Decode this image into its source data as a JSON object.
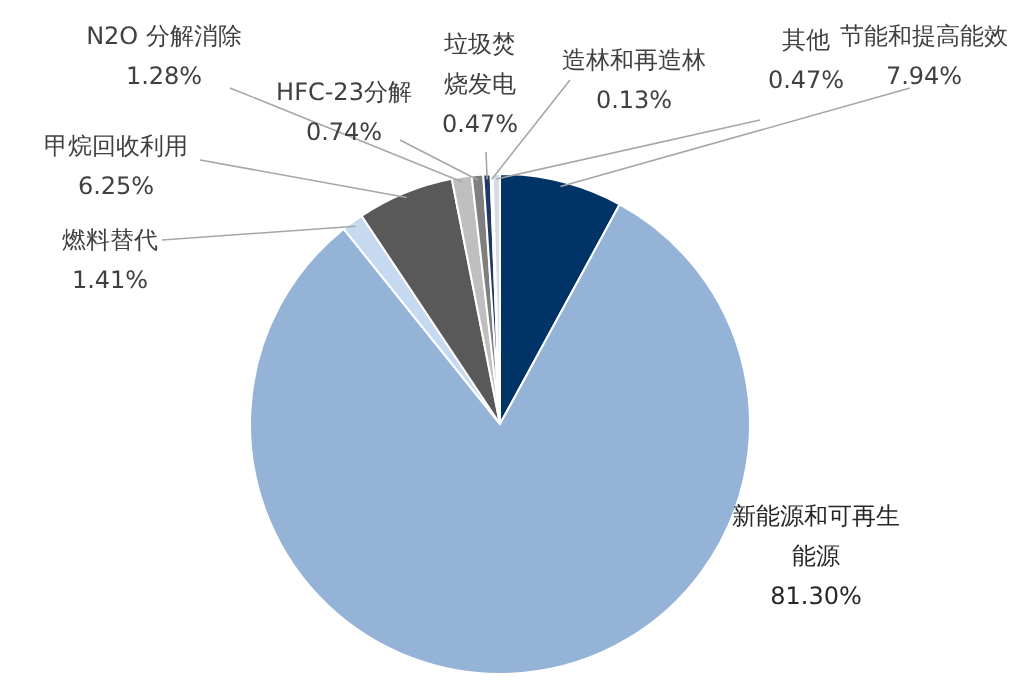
{
  "chart_data": {
    "type": "pie",
    "categories": [
      "节能和提高能效",
      "新能源和可再生能源",
      "燃料替代",
      "甲烷回收利用",
      "N2O 分解消除",
      "HFC-23分解",
      "垃圾焚烧发电",
      "造林和再造林",
      "其他"
    ],
    "values": [
      7.94,
      81.3,
      1.41,
      6.25,
      1.28,
      0.74,
      0.47,
      0.13,
      0.47
    ],
    "colors": [
      "#003366",
      "#95b3d7",
      "#c5d9f1",
      "#595959",
      "#bfbfbf",
      "#7f7f7f",
      "#1f3864",
      "#8eaadb",
      "#d6dce5"
    ],
    "value_labels": [
      "7.94%",
      "81.30%",
      "1.41%",
      "6.25%",
      "1.28%",
      "0.74%",
      "0.47%",
      "0.13%",
      "0.47%"
    ]
  }
}
